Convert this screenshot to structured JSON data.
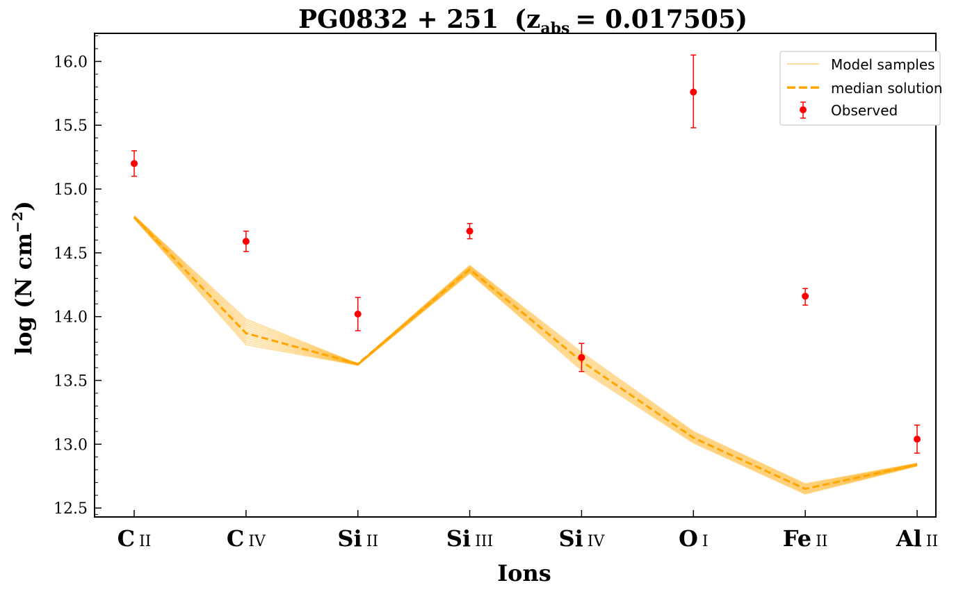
{
  "chart_data": {
    "type": "line",
    "title_main": "PG0832 + 251",
    "title_z": "z",
    "title_z_sub": "abs",
    "title_z_value": "= 0.017505",
    "xlabel": "Ions",
    "ylabel": "log (N cm",
    "ylabel_sup": "−2",
    "categories": [
      {
        "element": "C",
        "stage": "II"
      },
      {
        "element": "C",
        "stage": "IV"
      },
      {
        "element": "Si",
        "stage": "II"
      },
      {
        "element": "Si",
        "stage": "III"
      },
      {
        "element": "Si",
        "stage": "IV"
      },
      {
        "element": "O",
        "stage": "I"
      },
      {
        "element": "Fe",
        "stage": "II"
      },
      {
        "element": "Al",
        "stage": "II"
      }
    ],
    "ylim": [
      12.43,
      16.22
    ],
    "yticks": [
      "12.5",
      "13.0",
      "13.5",
      "14.0",
      "14.5",
      "15.0",
      "15.5",
      "16.0"
    ],
    "series": [
      {
        "name": "Model samples",
        "kind": "band",
        "color": "#ffa500",
        "upper": [
          14.79,
          13.98,
          13.63,
          14.4,
          13.72,
          13.1,
          12.69,
          12.85
        ],
        "lower": [
          14.77,
          13.78,
          13.62,
          14.34,
          13.58,
          13.01,
          12.61,
          12.83
        ]
      },
      {
        "name": "median solution",
        "kind": "line",
        "color": "#ffa500",
        "values": [
          14.78,
          13.87,
          13.63,
          14.37,
          13.65,
          13.05,
          12.65,
          12.84
        ]
      },
      {
        "name": "Observed",
        "kind": "errorbar",
        "color": "#ff0000",
        "values": [
          15.2,
          14.59,
          14.02,
          14.67,
          13.68,
          15.76,
          14.16,
          13.04
        ],
        "err_plus": [
          0.1,
          0.08,
          0.13,
          0.06,
          0.11,
          0.29,
          0.06,
          0.11
        ],
        "err_minus": [
          0.1,
          0.08,
          0.13,
          0.06,
          0.11,
          0.28,
          0.07,
          0.11
        ]
      }
    ],
    "legend": {
      "position": "top-right",
      "entries": [
        "Model samples",
        "median solution",
        "Observed"
      ]
    },
    "grid": false
  }
}
